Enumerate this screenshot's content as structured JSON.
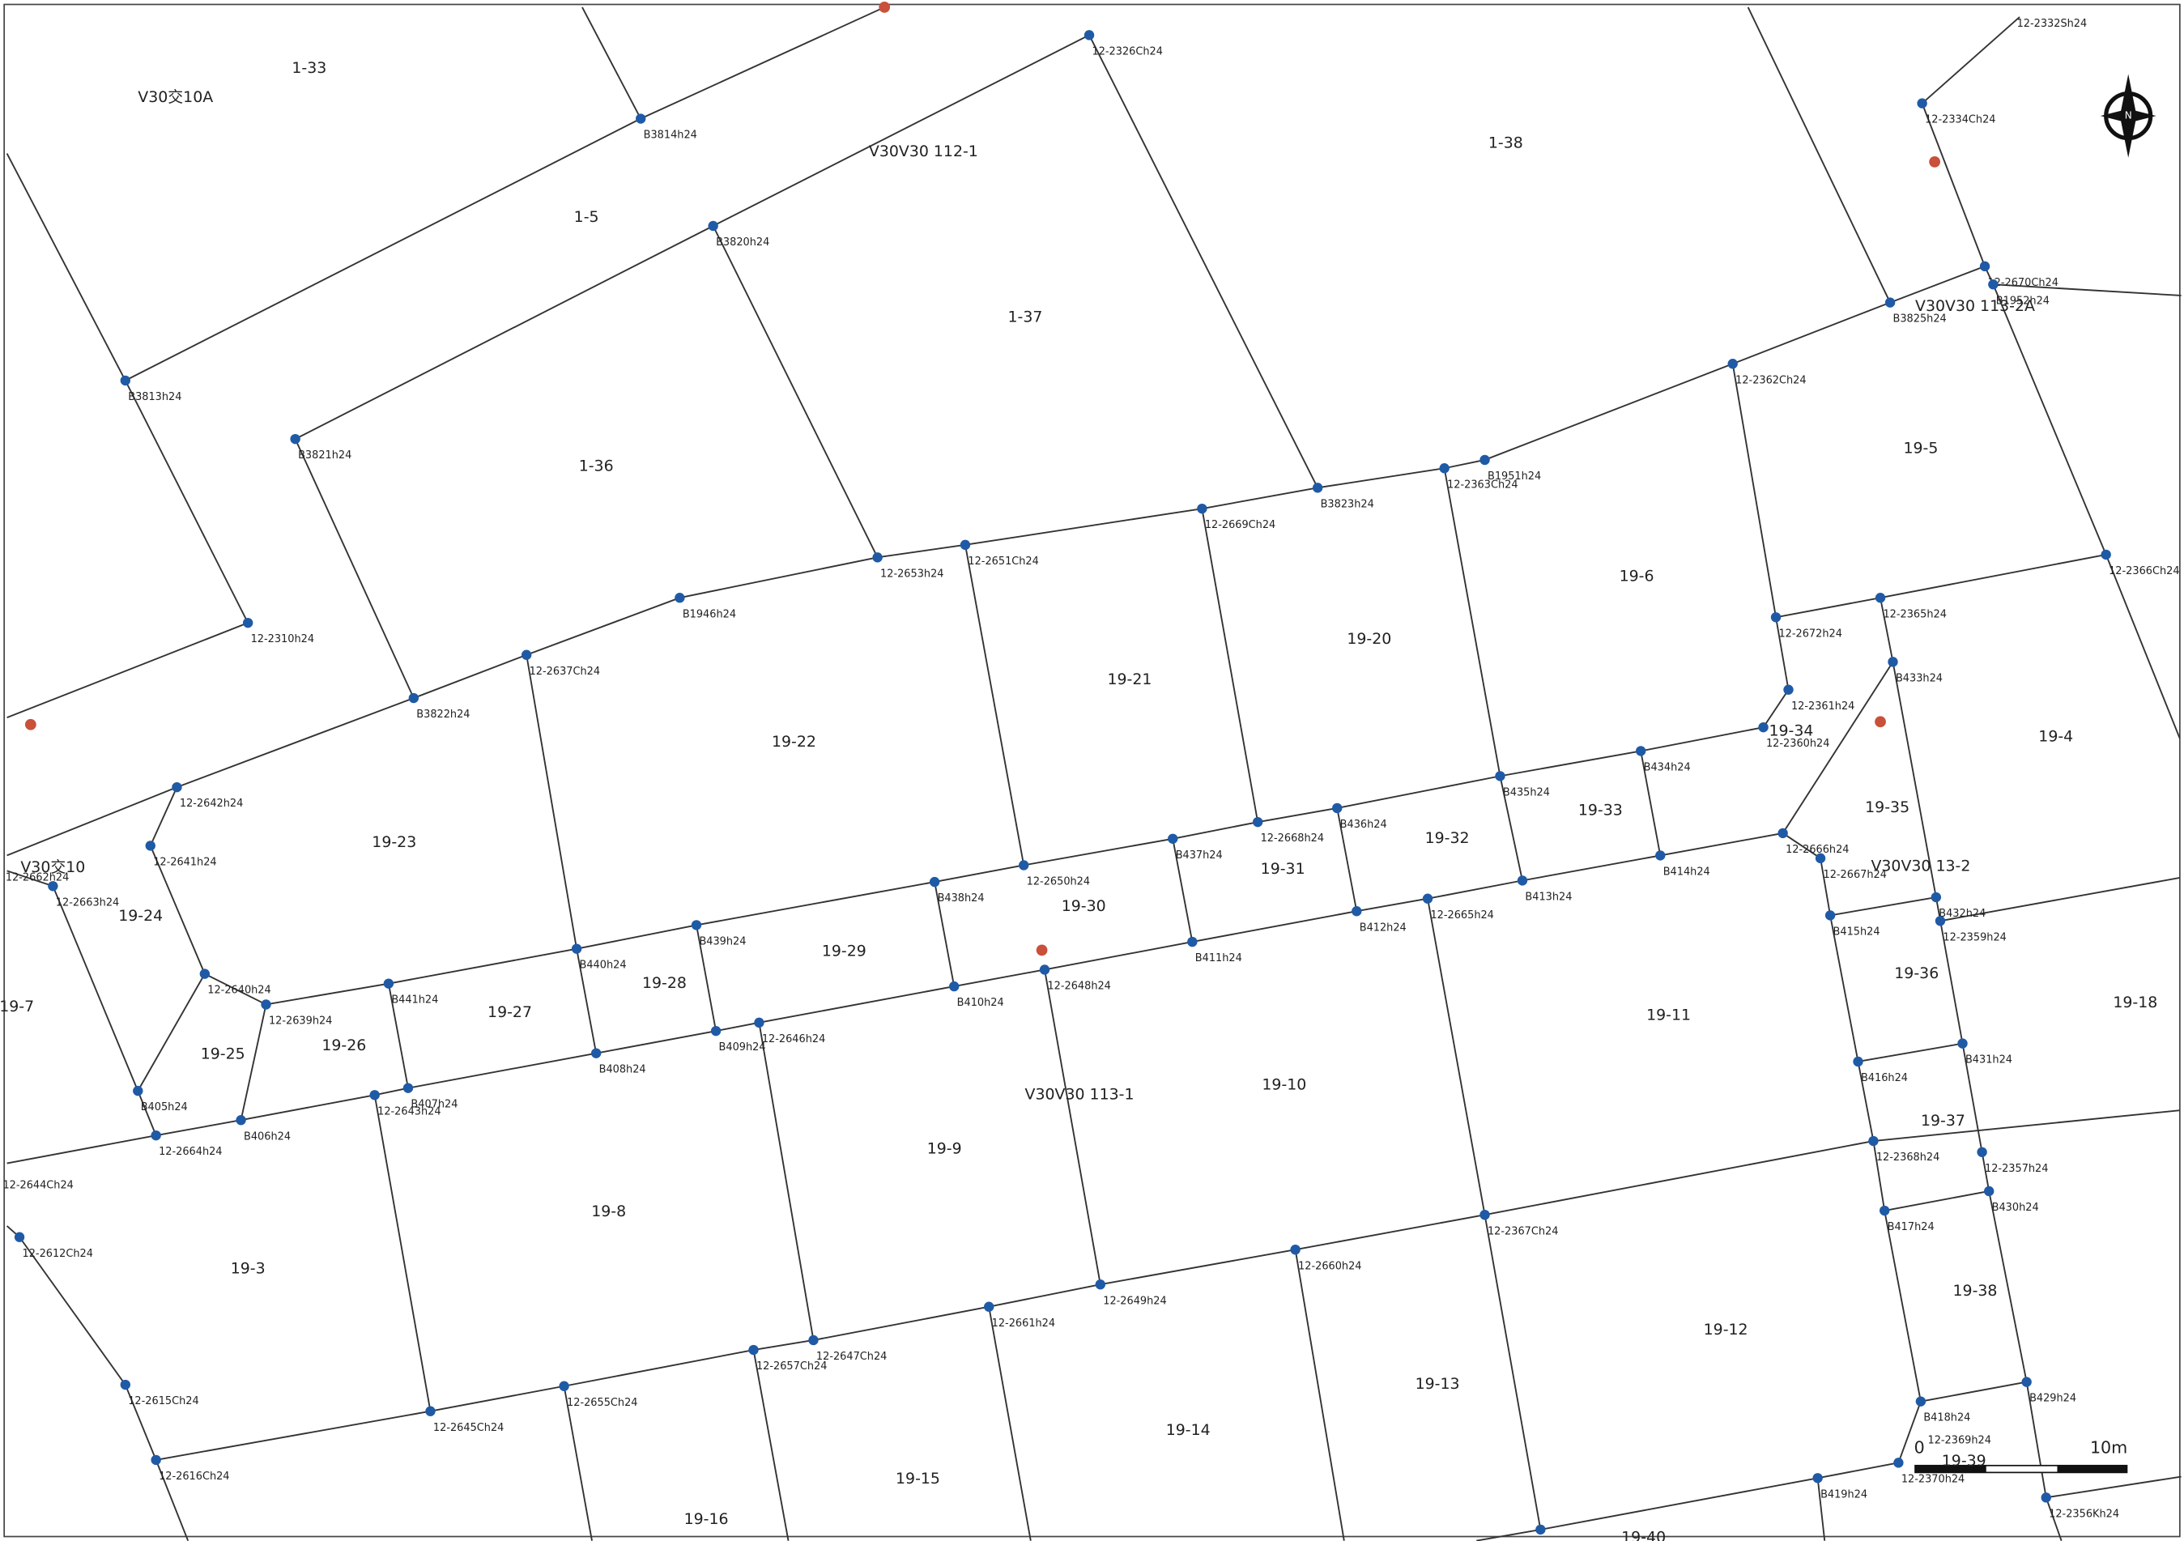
{
  "parcels": [
    "1-33",
    "V30交10A",
    "1-5",
    "V30V30 112-1",
    "1-38",
    "1-37",
    "1-36",
    "V30V30 113-2A",
    "19-5",
    "19-6",
    "19-20",
    "19-21",
    "19-22",
    "19-23",
    "19-34",
    "19-4",
    "19-35",
    "19-33",
    "19-32",
    "19-31",
    "19-30",
    "19-29",
    "19-28",
    "19-27",
    "19-26",
    "19-25",
    "19-24",
    "19-7",
    "V30交10",
    "V30V30 13-2",
    "19-36",
    "19-18",
    "19-11",
    "19-10",
    "V30V30 113-1",
    "19-9",
    "19-8",
    "19-3",
    "19-37",
    "19-38",
    "19-12",
    "19-13",
    "19-14",
    "19-15",
    "19-16",
    "19-39",
    "19-40"
  ],
  "points": [
    "B3814h24",
    "12-2326Ch24",
    "B3820h24",
    "B3813h24",
    "B3821h24",
    "12-2310h24",
    "B3822h24",
    "12-2637Ch24",
    "B1946h24",
    "12-2653h24",
    "12-2651Ch24",
    "12-2669Ch24",
    "B3823h24",
    "12-2363Ch24",
    "B1951h24",
    "12-2362Ch24",
    "B3825h24",
    "12-2670Ch24",
    "B1952h24",
    "12-2334Ch24",
    "12-2366Ch24",
    "12-2365h24",
    "12-2672h24",
    "12-2361h24",
    "B433h24",
    "12-2360h24",
    "B434h24",
    "B435h24",
    "B436h24",
    "12-2668h24",
    "B437h24",
    "12-2650h24",
    "B438h24",
    "B439h24",
    "B440h24",
    "B441h24",
    "12-2639h24",
    "12-2640h24",
    "12-2641h24",
    "12-2642h24",
    "12-2663h24",
    "B405h24",
    "12-2664h24",
    "B406h24",
    "12-2643h24",
    "B407h24",
    "B408h24",
    "B409h24",
    "12-2646h24",
    "B410h24",
    "12-2648h24",
    "B411h24",
    "B412h24",
    "12-2665h24",
    "B413h24",
    "B414h24",
    "12-2666h24",
    "12-2667h24",
    "B415h24",
    "B432h24",
    "12-2359h24",
    "B416h24",
    "B431h24",
    "12-2368h24",
    "12-2357h24",
    "B417h24",
    "B430h24",
    "12-2367Ch24",
    "12-2660h24",
    "12-2649h24",
    "12-2661h24",
    "12-2647Ch24",
    "12-2657Ch24",
    "12-2655Ch24",
    "12-2645Ch24",
    "12-2616Ch24",
    "12-2615Ch24",
    "12-2612Ch24",
    "B418h24",
    "B429h24",
    "12-2370h24",
    "B419h24",
    "12-2356Kh24",
    "12-2369h24",
    "12-2662h24",
    "12-2644Ch24",
    "12-2332Sh24"
  ],
  "north": "N",
  "scale": {
    "zero": "0",
    "length": "10m"
  }
}
